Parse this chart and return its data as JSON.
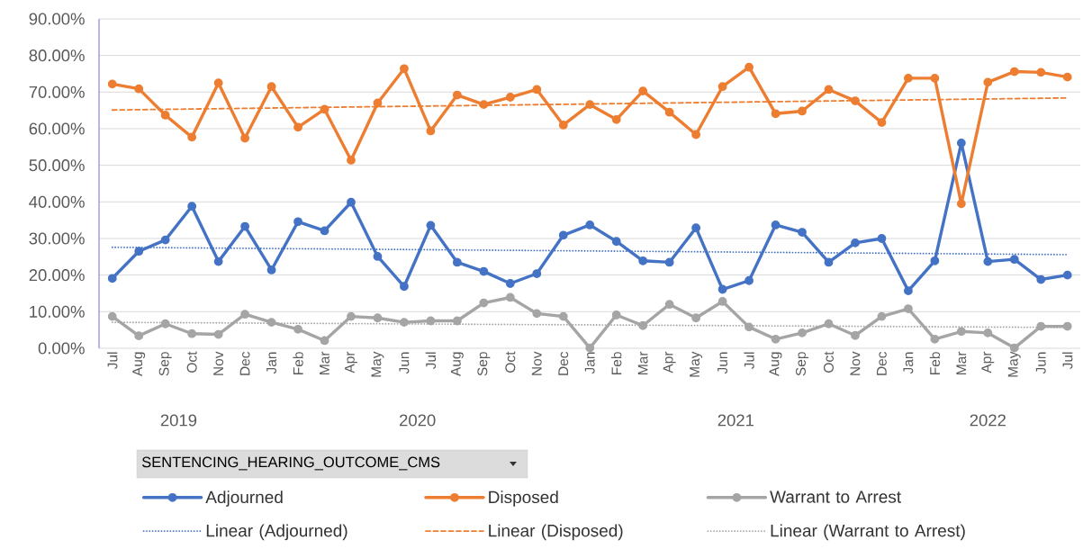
{
  "chart_data": {
    "type": "line",
    "x": [
      "2019-07",
      "2019-08",
      "2019-09",
      "2019-10",
      "2019-11",
      "2019-12",
      "2020-01",
      "2020-02",
      "2020-03",
      "2020-04",
      "2020-05",
      "2020-06",
      "2020-07",
      "2020-08",
      "2020-09",
      "2020-10",
      "2020-11",
      "2020-12",
      "2021-01",
      "2021-02",
      "2021-03",
      "2021-04",
      "2021-05",
      "2021-06",
      "2021-07",
      "2021-08",
      "2021-09",
      "2021-10",
      "2021-11",
      "2021-12",
      "2022-01",
      "2022-02",
      "2022-03",
      "2022-04",
      "2022-05",
      "2022-06",
      "2022-07"
    ],
    "xlim": [
      "2019-06-16",
      "2022-07-16"
    ],
    "xticks": [
      {
        "value": "2019-07",
        "label": "Jul"
      },
      {
        "value": "2019-08",
        "label": "Aug"
      },
      {
        "value": "2019-09",
        "label": "Sep"
      },
      {
        "value": "2019-10",
        "label": "Oct"
      },
      {
        "value": "2019-11",
        "label": "Nov"
      },
      {
        "value": "2019-12",
        "label": "Dec"
      },
      {
        "value": "2020-01",
        "label": "Jan"
      },
      {
        "value": "2020-02",
        "label": "Feb"
      },
      {
        "value": "2020-03",
        "label": "Mar"
      },
      {
        "value": "2020-04",
        "label": "Apr"
      },
      {
        "value": "2020-05",
        "label": "May"
      },
      {
        "value": "2020-06",
        "label": "Jun"
      },
      {
        "value": "2020-07",
        "label": "Jul"
      },
      {
        "value": "2020-08",
        "label": "Aug"
      },
      {
        "value": "2020-09",
        "label": "Sep"
      },
      {
        "value": "2020-10",
        "label": "Oct"
      },
      {
        "value": "2020-11",
        "label": "Nov"
      },
      {
        "value": "2020-12",
        "label": "Dec"
      },
      {
        "value": "2021-01",
        "label": "Jan"
      },
      {
        "value": "2021-02",
        "label": "Feb"
      },
      {
        "value": "2021-03",
        "label": "Mar"
      },
      {
        "value": "2021-04",
        "label": "Apr"
      },
      {
        "value": "2021-05",
        "label": "May"
      },
      {
        "value": "2021-06",
        "label": "Jun"
      },
      {
        "value": "2021-07",
        "label": "Jul"
      },
      {
        "value": "2021-08",
        "label": "Aug"
      },
      {
        "value": "2021-09",
        "label": "Sep"
      },
      {
        "value": "2021-10",
        "label": "Oct"
      },
      {
        "value": "2021-11",
        "label": "Nov"
      },
      {
        "value": "2021-12",
        "label": "Dec"
      },
      {
        "value": "2022-01",
        "label": "Jan"
      },
      {
        "value": "2022-02",
        "label": "Feb"
      },
      {
        "value": "2022-03",
        "label": "Mar"
      },
      {
        "value": "2022-04",
        "label": "Apr"
      },
      {
        "value": "2022-05",
        "label": "May"
      },
      {
        "value": "2022-06",
        "label": "Jun"
      },
      {
        "value": "2022-07",
        "label": "Jul"
      }
    ],
    "ylim": [
      0,
      90
    ],
    "yticks": [
      {
        "value": 0,
        "label": "0.00%"
      },
      {
        "value": 10,
        "label": "10.00%"
      },
      {
        "value": 20,
        "label": "20.00%"
      },
      {
        "value": 30,
        "label": "30.00%"
      },
      {
        "value": 40,
        "label": "40.00%"
      },
      {
        "value": 50,
        "label": "50.00%"
      },
      {
        "value": 60,
        "label": "60.00%"
      },
      {
        "value": 70,
        "label": "70.00%"
      },
      {
        "value": 80,
        "label": "80.00%"
      },
      {
        "value": 90,
        "label": "90.00%"
      }
    ],
    "grid": "y",
    "marker": "circle",
    "line_style": "solid",
    "legend": "bottom",
    "legend_title": "SENTENCING_HEARING_OUTCOME_CMS",
    "annotations": [
      "2019",
      "2020",
      "2021",
      "2022"
    ],
    "series": [
      {
        "name": "Adjourned",
        "color": "#4472c4",
        "values": [
          19.1,
          26.5,
          29.6,
          38.8,
          23.7,
          33.3,
          21.4,
          34.6,
          32.1,
          39.9,
          25.1,
          16.9,
          33.6,
          23.5,
          21.0,
          17.7,
          20.4,
          30.9,
          33.7,
          29.2,
          23.9,
          23.5,
          32.9,
          16.1,
          18.5,
          33.7,
          31.7,
          23.5,
          28.8,
          30.0,
          15.7,
          23.9,
          56.1,
          23.7,
          24.3,
          18.8,
          20.0
        ]
      },
      {
        "name": "Disposed",
        "color": "#ed7d31",
        "values": [
          72.2,
          70.9,
          63.7,
          57.7,
          72.5,
          57.4,
          71.5,
          60.4,
          65.3,
          51.4,
          67.0,
          76.4,
          59.4,
          69.2,
          66.6,
          68.6,
          70.7,
          61.0,
          66.6,
          62.5,
          70.3,
          64.5,
          58.4,
          71.5,
          76.8,
          64.1,
          64.8,
          70.7,
          67.6,
          61.7,
          73.8,
          73.8,
          39.5,
          72.7,
          75.6,
          75.4,
          74.1
        ]
      },
      {
        "name": "Warrant to Arrest",
        "color": "#a5a5a5",
        "values": [
          8.7,
          3.4,
          6.7,
          4.0,
          3.8,
          9.3,
          7.1,
          5.2,
          2.1,
          8.7,
          8.3,
          7.1,
          7.5,
          7.5,
          12.4,
          13.9,
          9.5,
          8.7,
          0.1,
          9.1,
          6.2,
          12.0,
          8.3,
          12.8,
          5.8,
          2.5,
          4.2,
          6.7,
          3.5,
          8.7,
          10.8,
          2.5,
          4.6,
          4.2,
          0.1,
          6.0,
          6.0
        ]
      },
      {
        "name": "Linear (Adjourned)",
        "type": "line",
        "color": "#4472c4",
        "x": [
          "2019-07",
          "2022-07"
        ],
        "values": [
          27.6,
          25.6
        ],
        "line_style": "dotted",
        "marker": "none"
      },
      {
        "name": "Linear (Disposed)",
        "type": "line",
        "color": "#ed7d31",
        "x": [
          "2019-07",
          "2022-07"
        ],
        "values": [
          65.1,
          68.4
        ],
        "line_style": "dashed",
        "marker": "none"
      },
      {
        "name": "Linear (Warrant to Arrest)",
        "type": "line",
        "color": "#a5a5a5",
        "x": [
          "2019-07",
          "2022-07"
        ],
        "values": [
          7.1,
          5.7
        ],
        "line_style": "dotted",
        "marker": "none"
      }
    ]
  }
}
